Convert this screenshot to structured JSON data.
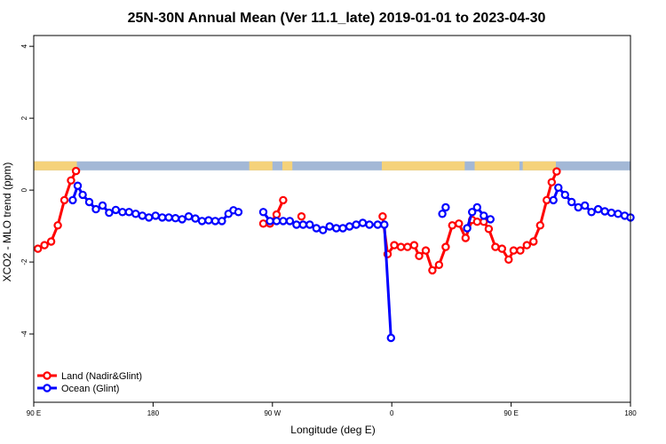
{
  "chart_data": {
    "type": "line",
    "title": "25N-30N Annual Mean (Ver 11.1_late)   2019-01-01 to 2023-04-30",
    "xlabel": "Longitude (deg E)",
    "ylabel": "XCO2 - MLO trend (ppm)",
    "xlim": [
      90,
      450
    ],
    "ylim": [
      -5.9,
      4.3
    ],
    "x_ticks": [
      {
        "value": 90,
        "label": "90 E"
      },
      {
        "value": 162,
        "label": "180"
      },
      {
        "value": 234,
        "label": "90 W"
      },
      {
        "value": 306,
        "label": "0"
      },
      {
        "value": 378,
        "label": "90 E"
      },
      {
        "value": 450,
        "label": "180"
      }
    ],
    "y_ticks": [
      {
        "value": 4,
        "label": "4"
      },
      {
        "value": 2,
        "label": "2"
      },
      {
        "value": 0,
        "label": "0"
      },
      {
        "value": -2,
        "label": "-2"
      },
      {
        "value": -4,
        "label": "-4"
      }
    ],
    "grid": false,
    "legend": {
      "placement": "bottom-left",
      "entries": [
        {
          "label": "Land (Nadir&Glint)",
          "color": "#ff0000"
        },
        {
          "label": "Ocean (Glint)",
          "color": "#0000ff"
        }
      ]
    },
    "landmask_band": {
      "y_range": [
        0.55,
        0.8
      ],
      "ocean_color": "#a3b8d6",
      "land_color": "#f5d27a",
      "land_segments": [
        [
          90,
          116
        ],
        [
          220,
          234
        ],
        [
          240,
          246
        ],
        [
          300,
          350
        ],
        [
          356,
          383
        ],
        [
          385,
          405
        ]
      ]
    },
    "series": [
      {
        "name": "Land (Nadir&Glint)",
        "color": "#ff0000",
        "segments": [
          [
            [
              92.5,
              -1.63
            ],
            [
              96.5,
              -1.53
            ],
            [
              100.5,
              -1.43
            ],
            [
              104.5,
              -0.98
            ],
            [
              108.5,
              -0.28
            ],
            [
              112.5,
              0.27
            ],
            [
              115.5,
              0.53
            ]
          ],
          [
            [
              228.5,
              -0.93
            ],
            [
              232.5,
              -0.93
            ],
            [
              236.5,
              -0.68
            ],
            [
              240.5,
              -0.28
            ]
          ],
          [
            [
              251.5,
              -0.73
            ]
          ],
          [
            [
              300.5,
              -0.73
            ],
            [
              303.5,
              -1.78
            ],
            [
              307.5,
              -1.53
            ],
            [
              311.5,
              -1.58
            ],
            [
              315.5,
              -1.58
            ],
            [
              319.5,
              -1.53
            ],
            [
              322.5,
              -1.83
            ],
            [
              326.5,
              -1.68
            ],
            [
              330.5,
              -2.23
            ],
            [
              334.5,
              -2.08
            ],
            [
              338.5,
              -1.58
            ],
            [
              342.5,
              -0.98
            ],
            [
              346.5,
              -0.93
            ],
            [
              350.5,
              -1.33
            ],
            [
              354.5,
              -0.83
            ],
            [
              357.5,
              -0.88
            ],
            [
              361.5,
              -0.88
            ],
            [
              364.5,
              -1.08
            ],
            [
              368.5,
              -1.58
            ],
            [
              372.5,
              -1.63
            ],
            [
              376.5,
              -1.93
            ],
            [
              379.5,
              -1.68
            ],
            [
              383.5,
              -1.68
            ],
            [
              387.5,
              -1.53
            ],
            [
              391.5,
              -1.43
            ],
            [
              395.5,
              -0.98
            ],
            [
              399.5,
              -0.28
            ],
            [
              402.5,
              0.22
            ],
            [
              405.5,
              0.52
            ]
          ]
        ]
      },
      {
        "name": "Ocean (Glint)",
        "color": "#0000ff",
        "segments": [
          [
            [
              113.5,
              -0.28
            ],
            [
              116.5,
              0.12
            ],
            [
              119.5,
              -0.13
            ],
            [
              123.5,
              -0.33
            ],
            [
              127.5,
              -0.53
            ],
            [
              131.5,
              -0.43
            ],
            [
              135.5,
              -0.63
            ],
            [
              139.5,
              -0.55
            ],
            [
              143.5,
              -0.61
            ],
            [
              147.5,
              -0.61
            ],
            [
              151.5,
              -0.66
            ],
            [
              155.5,
              -0.71
            ],
            [
              159.5,
              -0.76
            ],
            [
              163.5,
              -0.71
            ],
            [
              167.5,
              -0.76
            ],
            [
              171.5,
              -0.76
            ],
            [
              175.5,
              -0.78
            ],
            [
              179.5,
              -0.81
            ],
            [
              183.5,
              -0.73
            ],
            [
              187.5,
              -0.79
            ],
            [
              191.5,
              -0.86
            ],
            [
              195.5,
              -0.84
            ],
            [
              199.5,
              -0.86
            ],
            [
              203.5,
              -0.86
            ],
            [
              207.5,
              -0.66
            ],
            [
              210.5,
              -0.56
            ],
            [
              213.5,
              -0.61
            ]
          ],
          [
            [
              228.5,
              -0.61
            ],
            [
              232.5,
              -0.86
            ],
            [
              236.5,
              -0.86
            ],
            [
              240.5,
              -0.86
            ],
            [
              244.5,
              -0.86
            ],
            [
              248.5,
              -0.96
            ],
            [
              252.5,
              -0.96
            ],
            [
              256.5,
              -0.96
            ],
            [
              260.5,
              -1.06
            ],
            [
              264.5,
              -1.11
            ],
            [
              268.5,
              -1.01
            ],
            [
              272.5,
              -1.06
            ],
            [
              276.5,
              -1.06
            ],
            [
              280.5,
              -1.01
            ],
            [
              284.5,
              -0.96
            ],
            [
              288.5,
              -0.91
            ],
            [
              292.5,
              -0.96
            ],
            [
              297.5,
              -0.96
            ],
            [
              301.5,
              -0.96
            ],
            [
              305.5,
              -4.11
            ]
          ],
          [
            [
              336.5,
              -0.66
            ],
            [
              338.5,
              -0.48
            ]
          ],
          [
            [
              351.5,
              -1.06
            ],
            [
              354.5,
              -0.61
            ],
            [
              357.5,
              -0.48
            ],
            [
              361.5,
              -0.71
            ],
            [
              365.5,
              -0.81
            ]
          ],
          [
            [
              403.5,
              -0.28
            ],
            [
              406.5,
              0.07
            ],
            [
              410.5,
              -0.13
            ],
            [
              414.5,
              -0.33
            ],
            [
              418.5,
              -0.48
            ],
            [
              422.5,
              -0.43
            ],
            [
              426.5,
              -0.61
            ],
            [
              430.5,
              -0.53
            ],
            [
              434.5,
              -0.59
            ],
            [
              438.5,
              -0.63
            ],
            [
              442.5,
              -0.66
            ],
            [
              446.5,
              -0.71
            ],
            [
              450,
              -0.76
            ]
          ]
        ]
      }
    ]
  }
}
